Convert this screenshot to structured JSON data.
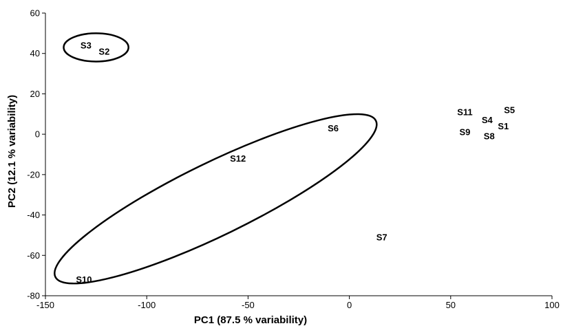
{
  "chart_data": {
    "type": "scatter",
    "title": "",
    "xlabel": "PC1 (87.5 % variability)",
    "ylabel": "PC2 (12.1 % variability)",
    "xlim": [
      -150,
      100
    ],
    "ylim": [
      -80,
      60
    ],
    "xticks": [
      -150,
      -100,
      -50,
      0,
      50,
      100
    ],
    "yticks": [
      -80,
      -60,
      -40,
      -20,
      0,
      20,
      40,
      60
    ],
    "xtick_labels": [
      "-150",
      "-100",
      "-50",
      "0",
      "50",
      "100"
    ],
    "ytick_labels": [
      "-80",
      "-60",
      "-40",
      "-20",
      "0",
      "20",
      "40",
      "60"
    ],
    "grid": false,
    "points": [
      {
        "label": "S3",
        "x": -130,
        "y": 44
      },
      {
        "label": "S2",
        "x": -121,
        "y": 41
      },
      {
        "label": "S6",
        "x": -8,
        "y": 3
      },
      {
        "label": "S12",
        "x": -55,
        "y": -12
      },
      {
        "label": "S10",
        "x": -131,
        "y": -72
      },
      {
        "label": "S11",
        "x": 57,
        "y": 11
      },
      {
        "label": "S5",
        "x": 79,
        "y": 12
      },
      {
        "label": "S4",
        "x": 68,
        "y": 7
      },
      {
        "label": "S1",
        "x": 76,
        "y": 4
      },
      {
        "label": "S9",
        "x": 57,
        "y": 1
      },
      {
        "label": "S8",
        "x": 69,
        "y": -1
      },
      {
        "label": "S7",
        "x": 16,
        "y": -51
      }
    ],
    "groups": [
      {
        "members": [
          "S3",
          "S2"
        ],
        "center": [
          -125,
          43
        ],
        "rx": 16,
        "ry": 7,
        "angle": 0
      },
      {
        "members": [
          "S6",
          "S12",
          "S10"
        ],
        "center": [
          -66,
          -32
        ],
        "rx": 88,
        "ry": 18,
        "angle": 26
      }
    ]
  }
}
